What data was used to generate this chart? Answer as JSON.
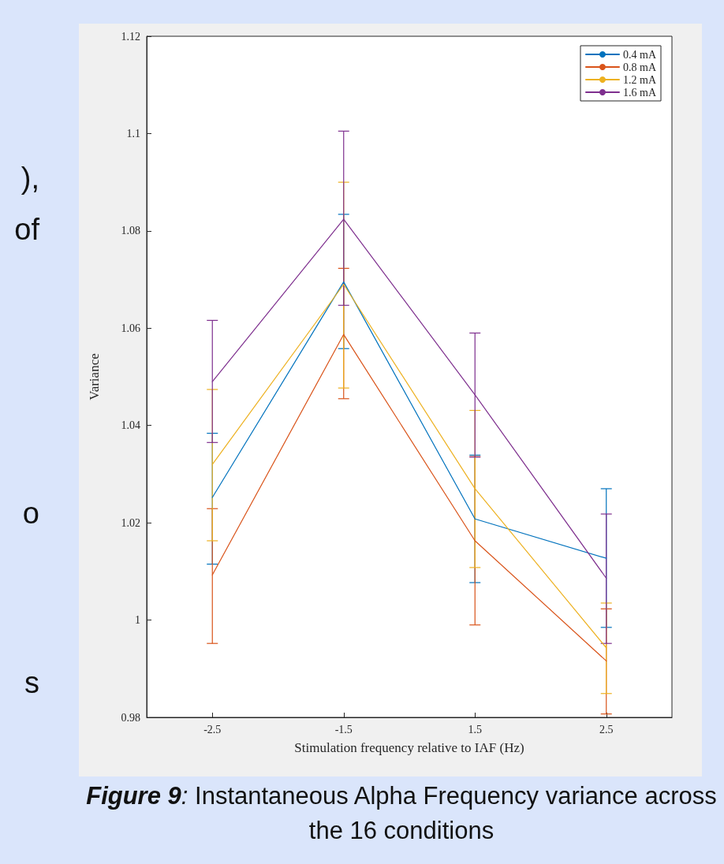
{
  "chart_data": {
    "type": "line",
    "title": "Figure 9: Instantaneous Alpha Frequency variance across the 16 conditions",
    "xlabel": "Stimulation frequency relative to IAF (Hz)",
    "ylabel": "Variance",
    "categories": [
      "-2.5",
      "-1.5",
      "1.5",
      "2.5"
    ],
    "series": [
      {
        "name": "0.4 mA",
        "color": "#0072bd",
        "values": [
          1.0252,
          1.0695,
          1.0208,
          1.0127
        ],
        "errors": [
          [
            1.0115,
            1.0384
          ],
          [
            1.0558,
            1.0834
          ],
          [
            1.0077,
            1.0339
          ],
          [
            0.9985,
            1.027
          ]
        ]
      },
      {
        "name": "0.8 mA",
        "color": "#d95319",
        "values": [
          1.0093,
          1.0587,
          1.0163,
          0.9916
        ],
        "errors": [
          [
            0.9952,
            1.0229
          ],
          [
            1.0455,
            1.0723
          ],
          [
            0.999,
            1.0336
          ],
          [
            0.9807,
            1.0023
          ]
        ]
      },
      {
        "name": "1.2 mA",
        "color": "#edb120",
        "values": [
          1.032,
          1.069,
          1.027,
          0.9943
        ],
        "errors": [
          [
            1.0163,
            1.0474
          ],
          [
            1.0477,
            1.09
          ],
          [
            1.0108,
            1.0431
          ],
          [
            0.9849,
            1.0035
          ]
        ]
      },
      {
        "name": "1.6 mA",
        "color": "#7e2f8e",
        "values": [
          1.049,
          1.0824,
          1.0463,
          1.0086
        ],
        "errors": [
          [
            1.0365,
            1.0616
          ],
          [
            1.0647,
            1.1005
          ],
          [
            1.0335,
            1.059
          ],
          [
            0.9952,
            1.0218
          ]
        ]
      }
    ],
    "ylim": [
      0.98,
      1.12
    ],
    "yticks": [
      0.98,
      1,
      1.02,
      1.04,
      1.06,
      1.08,
      1.1,
      1.12
    ],
    "grid": false,
    "legend": "top right",
    "marker": "none",
    "line_style": "solid",
    "annotations": [
      "),",
      "of",
      "o",
      "s"
    ]
  }
}
